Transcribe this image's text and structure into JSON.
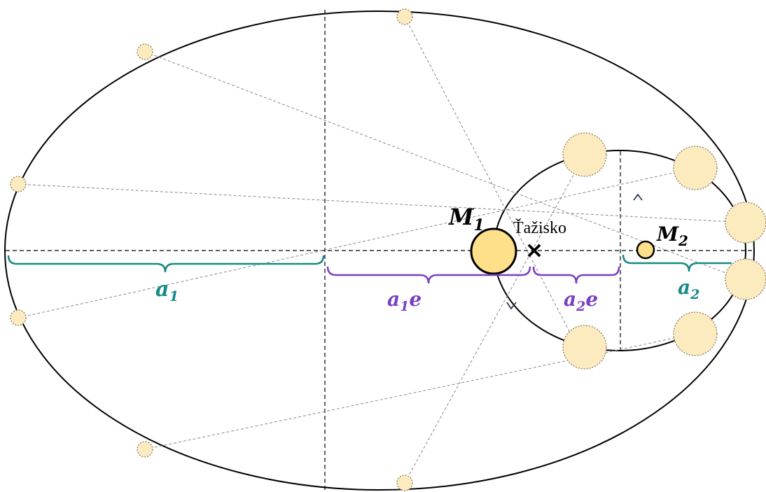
{
  "labels": {
    "m1": "M",
    "m1_sub": "1",
    "m2": "M",
    "m2_sub": "2",
    "barycenter": "Ťažisko",
    "a1": "a",
    "a1_sub": "1",
    "a1e": "a",
    "a1e_sub": "1",
    "a1e_tail": "e",
    "a2": "a",
    "a2_sub": "2",
    "a2e": "a",
    "a2e_sub": "2",
    "a2e_tail": "e",
    "barycenter_marker": "×"
  },
  "colors": {
    "body_fill": "#ffe7a0",
    "ghost_fill": "#fdebc0",
    "teal": "#168a86",
    "purple": "#7b3fc4",
    "orbit": "#000000",
    "guide": "#888888",
    "arrow": "#2b3a55"
  },
  "icons": {
    "direction": "orbit-direction-arrow-icon"
  }
}
